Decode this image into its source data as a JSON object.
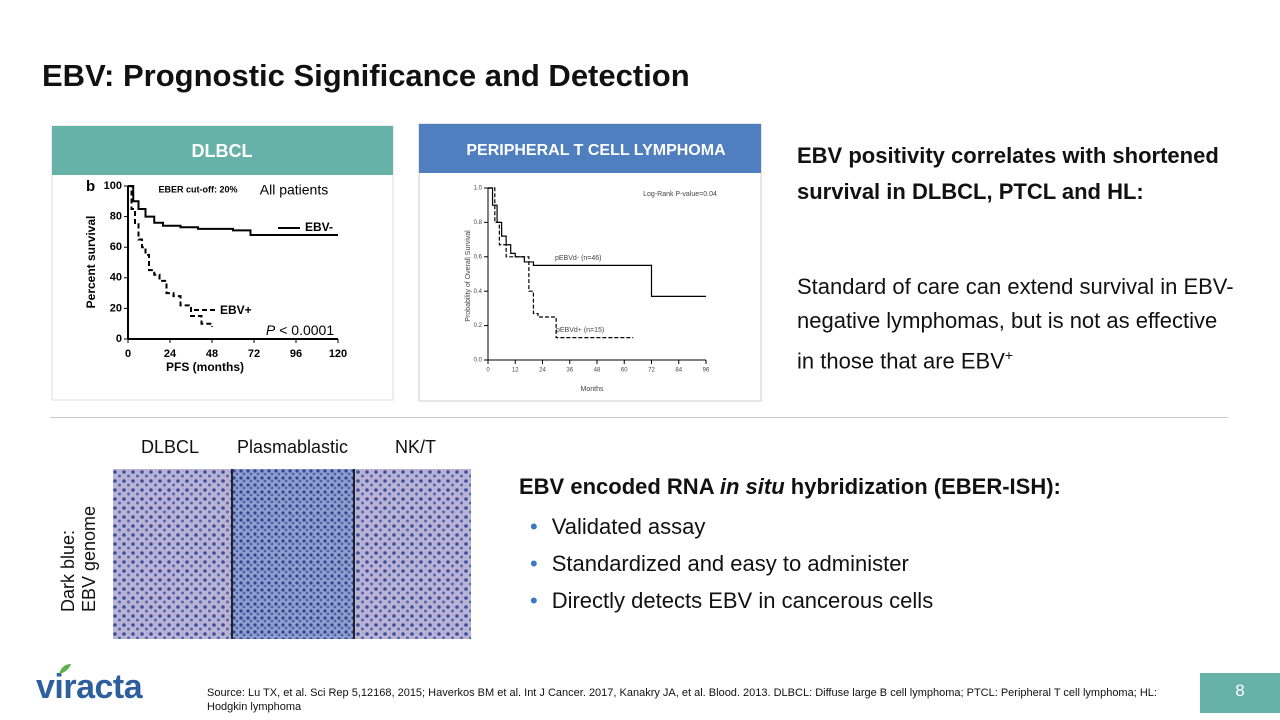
{
  "header": {
    "title": "EBV: Prognostic Significance and Detection"
  },
  "chart_data": [
    {
      "type": "step",
      "panel_title": "DLBCL",
      "panel_letter": "b",
      "annotation": "EBER cut-off: 20%",
      "subtitle": "All patients",
      "x_label": "PFS (months)",
      "y_label": "Percent survival",
      "p_value": {
        "italic": "P",
        "rest": "< 0.0001"
      },
      "xlim": [
        0,
        120
      ],
      "xticks": [
        0,
        24,
        48,
        72,
        96,
        120
      ],
      "ylim": [
        0,
        100
      ],
      "yticks": [
        0,
        20,
        40,
        60,
        80,
        100
      ],
      "series": [
        {
          "name": "EBV-",
          "color": "#000000",
          "line_style": "solid",
          "x": [
            0,
            3,
            6,
            10,
            15,
            20,
            30,
            40,
            50,
            60,
            70,
            80,
            100,
            120
          ],
          "values": [
            100,
            90,
            85,
            80,
            76,
            74,
            73,
            72,
            72,
            71,
            68,
            68,
            68,
            68
          ]
        },
        {
          "name": "EBV+",
          "color": "#000000",
          "line_style": "dashed",
          "x": [
            0,
            2,
            4,
            6,
            8,
            10,
            12,
            15,
            18,
            22,
            26,
            30,
            36,
            42,
            48
          ],
          "values": [
            100,
            85,
            75,
            65,
            60,
            55,
            45,
            42,
            38,
            30,
            28,
            22,
            15,
            10,
            8
          ]
        }
      ]
    },
    {
      "type": "step",
      "panel_title": "PERIPHERAL T CELL LYMPHOMA",
      "annotation": "Log-Rank P-value=0.04",
      "x_label": "Months",
      "y_label": "Probability of Overall Survival",
      "xlim": [
        0,
        96
      ],
      "xticks": [
        0,
        12,
        24,
        36,
        48,
        60,
        72,
        84,
        96
      ],
      "ylim": [
        0,
        1
      ],
      "yticks": [
        {
          "value": 0,
          "label": "0.0"
        },
        0.2,
        0.4,
        0.6,
        0.8,
        {
          "value": 1,
          "label": "1.0"
        }
      ],
      "series": [
        {
          "name": "pEBVd- (n=46)",
          "color": "#000000",
          "line_style": "solid",
          "x": [
            0,
            2,
            4,
            6,
            8,
            10,
            12,
            16,
            20,
            24,
            72,
            96
          ],
          "values": [
            1.0,
            0.9,
            0.8,
            0.72,
            0.67,
            0.62,
            0.6,
            0.57,
            0.55,
            0.55,
            0.37,
            0.37
          ]
        },
        {
          "name": "pEBVd+ (n=15)",
          "color": "#000000",
          "line_style": "dashed",
          "x": [
            0,
            3,
            5,
            8,
            12,
            18,
            20,
            22,
            30,
            48,
            64
          ],
          "values": [
            1.0,
            0.8,
            0.67,
            0.6,
            0.6,
            0.4,
            0.27,
            0.25,
            0.13,
            0.13,
            0.13
          ]
        }
      ]
    }
  ],
  "summary": {
    "heading": "EBV positivity correlates with shortened survival in DLBCL, PTCL and HL:",
    "paragraph": "Standard of care can extend survival in EBV-negative lymphomas, but is not as effective in those that are EBV",
    "paragraph_sup": "+"
  },
  "histology": {
    "labels": [
      "DLBCL",
      "Plasmablastic",
      "NK/T"
    ],
    "side_label": [
      "Dark blue:",
      "EBV genome"
    ]
  },
  "eber": {
    "heading": {
      "before": "EBV encoded RNA ",
      "italic": "in situ",
      "after": " hybridization (EBER-ISH):"
    },
    "bullets": [
      "Validated assay",
      "Standardized and easy to administer",
      "Directly detects EBV in cancerous cells"
    ]
  },
  "footer": {
    "logo": "viracta",
    "source": "Source: Lu TX, et al. Sci Rep 5,12168, 2015;  Haverkos BM et al. Int J Cancer. 2017, Kanakry JA, et al. Blood. 2013. DLBCL: Diffuse large B cell lymphoma; PTCL: Peripheral T cell lymphoma; HL: Hodgkin lymphoma",
    "page_number": "8"
  }
}
